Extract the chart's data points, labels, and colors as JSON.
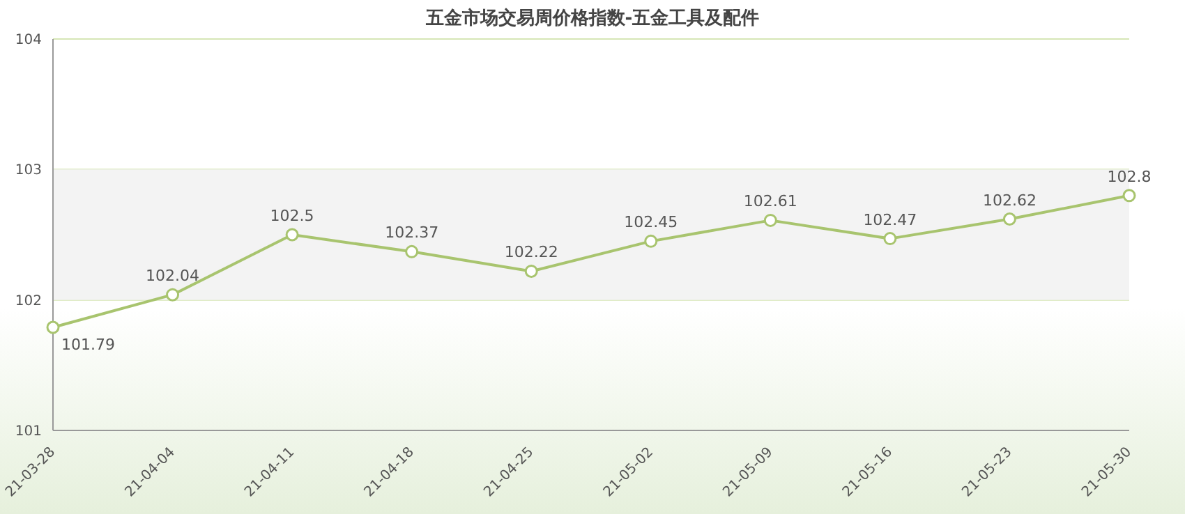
{
  "chart_data": {
    "type": "line",
    "title": "五金市场交易周价格指数-五金工具及配件",
    "categories": [
      "21-03-28",
      "21-04-04",
      "21-04-11",
      "21-04-18",
      "21-04-25",
      "21-05-02",
      "21-05-09",
      "21-05-16",
      "21-05-23",
      "21-05-30"
    ],
    "series": [
      {
        "color": "#a8c46e",
        "values": [
          101.79,
          102.04,
          102.5,
          102.37,
          102.22,
          102.45,
          102.61,
          102.47,
          102.62,
          102.8
        ]
      }
    ],
    "ylim": [
      101,
      104
    ],
    "yticks": [
      101,
      102,
      103,
      104
    ],
    "grid": "y",
    "marker": "circle",
    "data_labels": true,
    "legend": false,
    "bands": [
      {
        "axis": "y",
        "from": 102,
        "to": 103,
        "color": "#f3f3f3"
      }
    ]
  }
}
